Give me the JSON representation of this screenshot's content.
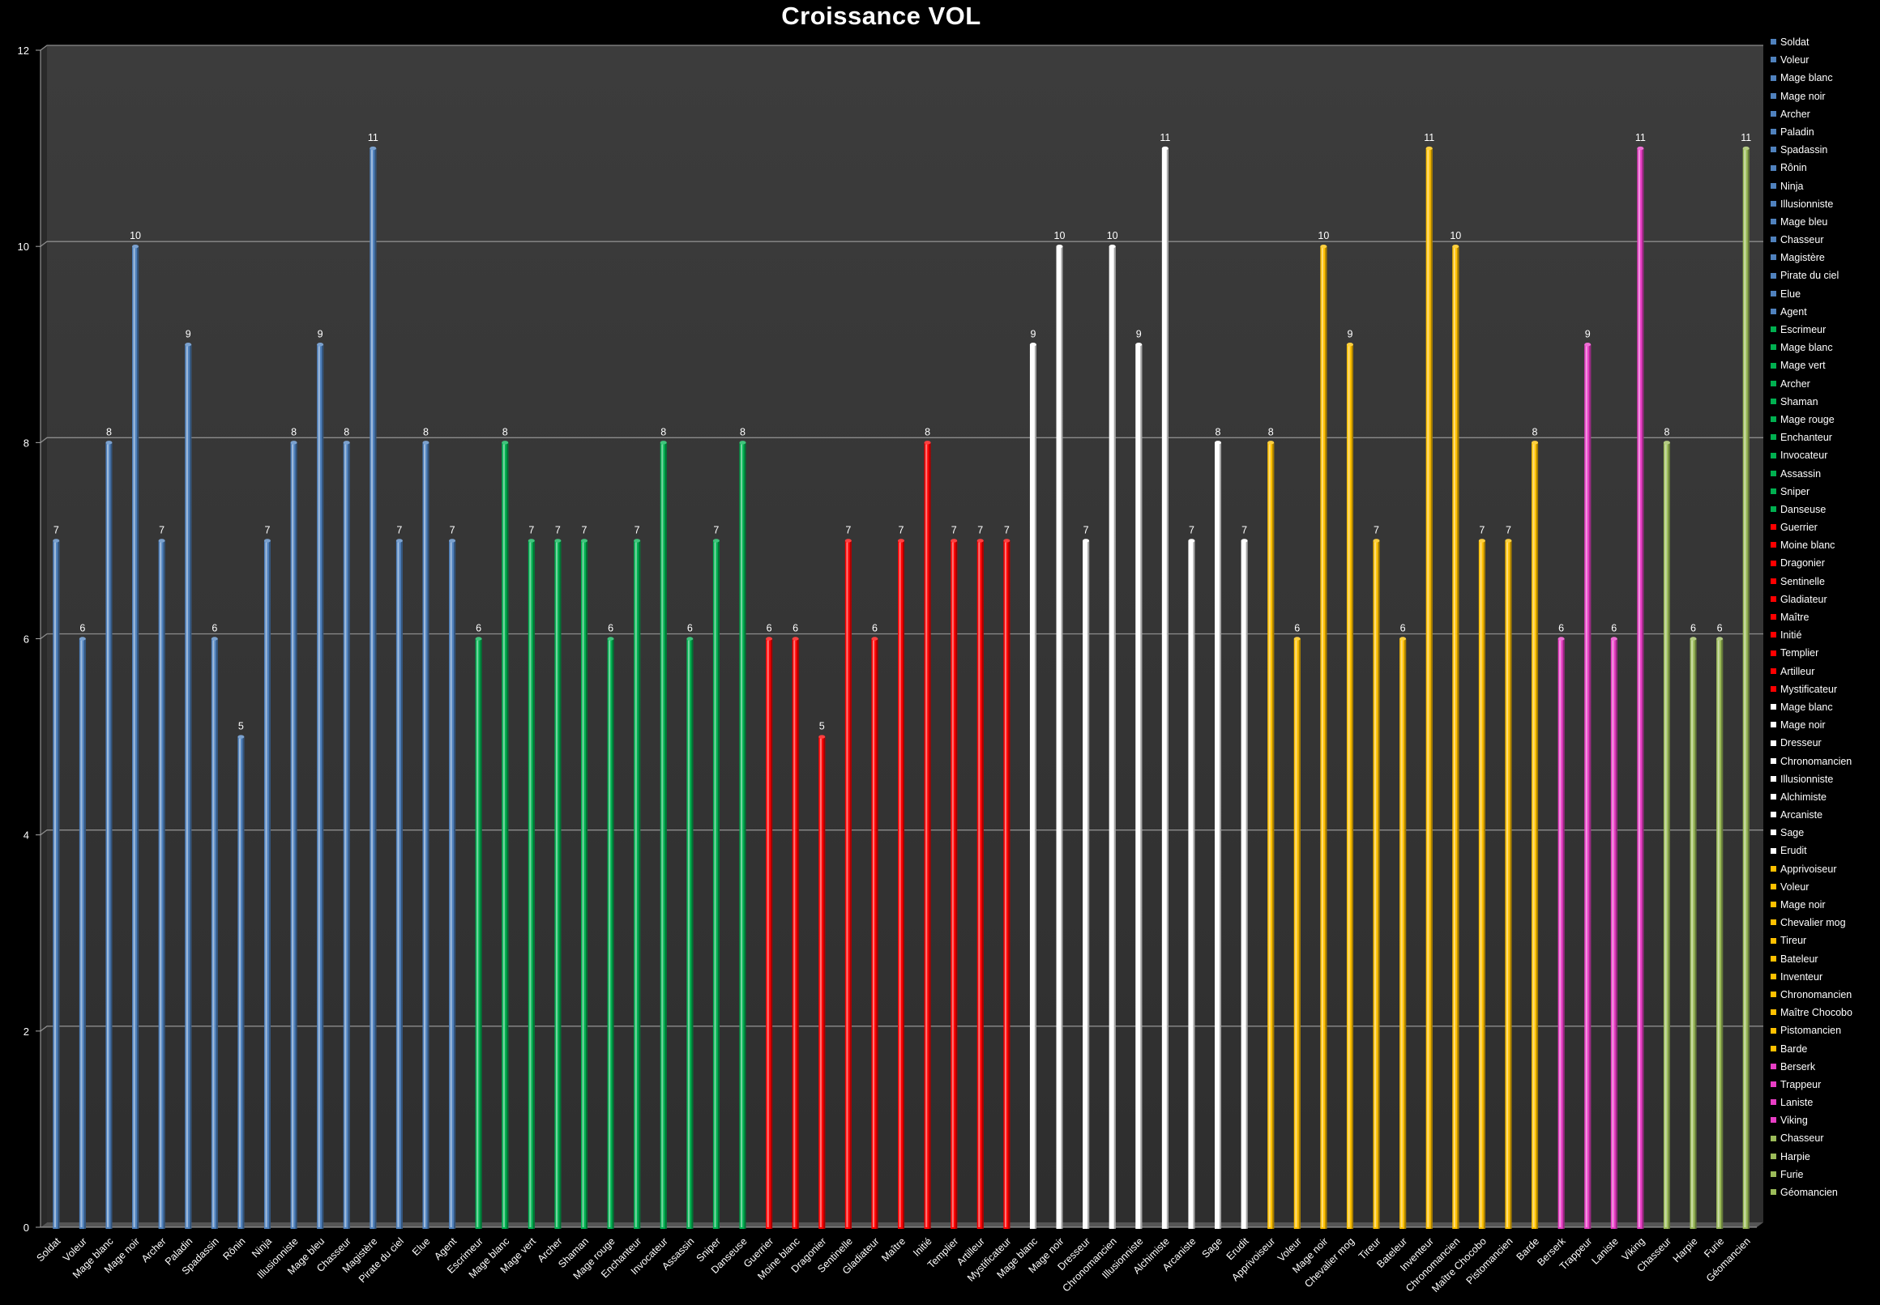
{
  "chart_data": {
    "type": "bar",
    "title": "Croissance VOL",
    "xlabel": "",
    "ylabel": "",
    "ylim": [
      0,
      12
    ],
    "yticks": [
      "0",
      "2",
      "4",
      "6",
      "8",
      "10",
      "12"
    ],
    "grid": true,
    "legend_position": "right",
    "data_labels": true,
    "groups": [
      {
        "color": "#4f81bd",
        "categories": [
          "Soldat",
          "Voleur",
          "Mage blanc",
          "Mage noir",
          "Archer",
          "Paladin",
          "Spadassin",
          "Rônin",
          "Ninja",
          "Illusionniste",
          "Mage bleu",
          "Chasseur",
          "Magistère",
          "Pirate du ciel",
          "Elue",
          "Agent"
        ],
        "values": [
          7,
          6,
          8,
          10,
          7,
          9,
          6,
          5,
          7,
          8,
          9,
          8,
          11,
          7,
          8,
          7
        ]
      },
      {
        "color": "#00b050",
        "categories": [
          "Escrimeur",
          "Mage blanc",
          "Mage vert",
          "Archer",
          "Shaman",
          "Mage rouge",
          "Enchanteur",
          "Invocateur",
          "Assassin",
          "Sniper",
          "Danseuse"
        ],
        "values": [
          6,
          8,
          7,
          7,
          7,
          6,
          7,
          8,
          6,
          7,
          8
        ]
      },
      {
        "color": "#ff0000",
        "categories": [
          "Guerrier",
          "Moine blanc",
          "Dragonier",
          "Sentinelle",
          "Gladiateur",
          "Maître",
          "Initié",
          "Templier",
          "Artilleur",
          "Mystificateur"
        ],
        "values": [
          6,
          6,
          5,
          7,
          6,
          7,
          8,
          7,
          7,
          7
        ]
      },
      {
        "color": "#ffffff",
        "categories": [
          "Mage blanc",
          "Mage noir",
          "Dresseur",
          "Chronomancien",
          "Illusionniste",
          "Alchimiste",
          "Arcaniste",
          "Sage",
          "Erudit"
        ],
        "values": [
          9,
          10,
          7,
          10,
          9,
          11,
          7,
          8,
          7
        ]
      },
      {
        "color": "#ffc000",
        "categories": [
          "Apprivoiseur",
          "Voleur",
          "Mage noir",
          "Chevalier mog",
          "Tireur",
          "Bateleur",
          "Inventeur",
          "Chronomancien",
          "Maître Chocobo",
          "Pistomancien",
          "Barde"
        ],
        "values": [
          8,
          6,
          10,
          9,
          7,
          6,
          11,
          10,
          7,
          7,
          8
        ]
      },
      {
        "color": "#e83ec5",
        "categories": [
          "Berserk",
          "Trappeur",
          "Laniste",
          "Viking"
        ],
        "values": [
          6,
          9,
          6,
          11
        ]
      },
      {
        "color": "#9bbb59",
        "categories": [
          "Chasseur",
          "Harpie",
          "Furie",
          "Géomancien"
        ],
        "values": [
          8,
          6,
          6,
          11
        ]
      }
    ]
  }
}
